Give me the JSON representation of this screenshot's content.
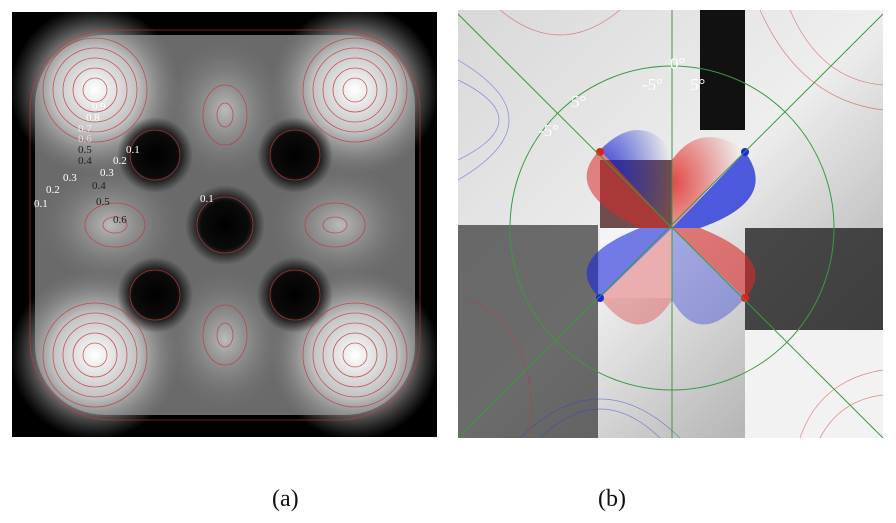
{
  "panels": [
    {
      "caption": "(a)",
      "contour_labels": [
        "0.9",
        "0.8",
        "0.7",
        "0.6",
        "0.5",
        "0.4",
        "0.1",
        "0.2",
        "0.3",
        "0.4",
        "0.5",
        "0.6",
        "0.3",
        "0.2",
        "0.1",
        "0.1"
      ],
      "colors": {
        "background": "#000000",
        "contour": "#c0393b"
      }
    },
    {
      "caption": "(b)",
      "angle_labels": [
        "0°",
        "-5°",
        "5°",
        "5°",
        "-5°"
      ],
      "colors": {
        "positive": "#e0201c",
        "negative": "#1c2ee0",
        "guide": "#3a9a40"
      }
    }
  ]
}
